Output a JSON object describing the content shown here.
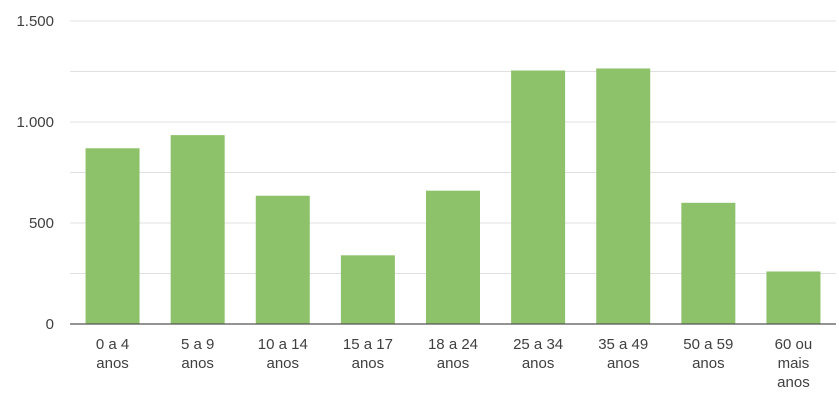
{
  "chart_data": {
    "type": "bar",
    "title": "",
    "xlabel": "",
    "ylabel": "",
    "categories": [
      [
        "0 a 4",
        "anos"
      ],
      [
        "5 a 9",
        "anos"
      ],
      [
        "10 a 14",
        "anos"
      ],
      [
        "15 a 17",
        "anos"
      ],
      [
        "18 a 24",
        "anos"
      ],
      [
        "25 a 34",
        "anos"
      ],
      [
        "35 a 49",
        "anos"
      ],
      [
        "50 a 59",
        "anos"
      ],
      [
        "60 ou",
        "mais",
        "anos"
      ]
    ],
    "values": [
      870,
      935,
      635,
      340,
      660,
      1255,
      1265,
      600,
      260
    ],
    "ylim": [
      0,
      1500
    ],
    "yticks": [
      0,
      500,
      1000,
      1500
    ],
    "ytick_labels": [
      "0",
      "500",
      "1.000",
      "1.500"
    ],
    "grid": true,
    "colors": {
      "bar": "#8dc26a",
      "grid": "#e0e0e0",
      "axis": "#555555",
      "text": "#404040"
    }
  }
}
